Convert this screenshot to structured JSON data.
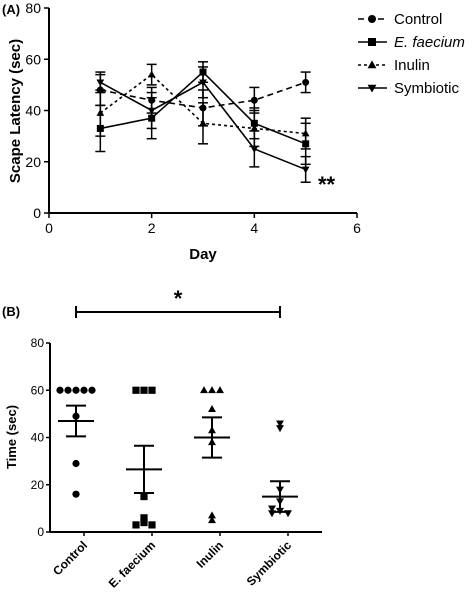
{
  "chart_data": [
    {
      "panel_label": "(A)",
      "type": "line",
      "xlabel": "Day",
      "ylabel": "Scape Latency (sec)",
      "xlim": [
        0,
        6
      ],
      "ylim": [
        0,
        80
      ],
      "x_ticks": [
        0,
        2,
        4,
        6
      ],
      "y_ticks": [
        0,
        20,
        40,
        60,
        80
      ],
      "grid": false,
      "legend": "right",
      "x": [
        1,
        2,
        3,
        4,
        5
      ],
      "series": [
        {
          "name": "Control",
          "marker": "circle",
          "dash": "6,4",
          "values": [
            48,
            44,
            41,
            44,
            51
          ],
          "err": [
            6,
            5,
            7,
            5,
            4
          ]
        },
        {
          "name": "E. faecium",
          "marker": "square",
          "dash": "",
          "values": [
            33,
            37,
            55,
            35,
            27
          ],
          "err": [
            9,
            8,
            4,
            6,
            8
          ]
        },
        {
          "name": "Inulin",
          "marker": "triangle-up",
          "dash": "3,3",
          "values": [
            39,
            54,
            35,
            33,
            31
          ],
          "err": [
            9,
            4,
            8,
            7,
            6
          ]
        },
        {
          "name": "Symbiotic",
          "marker": "triangle-down",
          "dash": "",
          "values": [
            51,
            40,
            51,
            25,
            17
          ],
          "err": [
            4,
            7,
            6,
            7,
            5
          ]
        }
      ],
      "annotation": "**"
    },
    {
      "panel_label": "(B)",
      "type": "scatter",
      "ylabel": "Time (sec)",
      "ylim": [
        0,
        80
      ],
      "y_ticks": [
        0,
        20,
        40,
        60,
        80
      ],
      "grid": false,
      "categories": [
        "Control",
        "E. faecium",
        "Inulin",
        "Symbiotic"
      ],
      "groups": [
        {
          "name": "Control",
          "marker": "circle",
          "mean": 47,
          "sem": 6.5,
          "points": [
            60,
            60,
            60,
            60,
            60,
            49,
            29,
            16
          ]
        },
        {
          "name": "E. faecium",
          "marker": "square",
          "mean": 26.5,
          "sem": 10,
          "points": [
            60,
            60,
            60,
            15,
            4,
            6,
            3,
            3
          ]
        },
        {
          "name": "Inulin",
          "marker": "triangle-up",
          "mean": 40,
          "sem": 8.5,
          "points": [
            60,
            60,
            60,
            52,
            43,
            38,
            7,
            5
          ]
        },
        {
          "name": "Symbiotic",
          "marker": "triangle-down",
          "mean": 15,
          "sem": 6.5,
          "points": [
            46,
            44,
            18,
            13,
            10,
            9,
            8,
            8
          ]
        }
      ],
      "significance": {
        "from": "Control",
        "to": "Symbiotic",
        "label": "*"
      }
    }
  ]
}
